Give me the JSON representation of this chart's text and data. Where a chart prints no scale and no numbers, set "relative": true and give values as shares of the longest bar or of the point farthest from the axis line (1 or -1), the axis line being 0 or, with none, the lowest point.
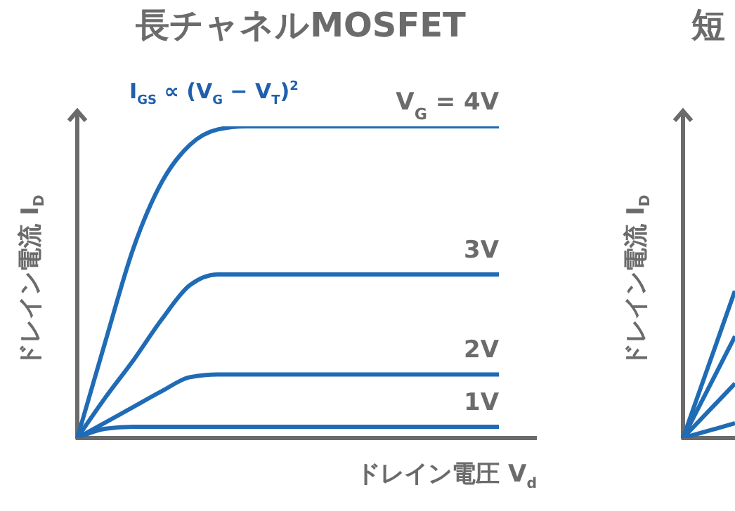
{
  "chart_data": [
    {
      "type": "line",
      "title": "長チャネルMOSFET",
      "xlabel": "ドレイン電圧 V$_{d}$",
      "ylabel": "ドレイン電流 I$_{D}$",
      "annotations": [
        "I$_{GS}$ ∝ (V$_{G}$ − V$_{T}$)$^{2}$"
      ],
      "relative": true,
      "marker": "none",
      "line_style": "solid",
      "categories": [
        null,
        null,
        null,
        null,
        null,
        null,
        null,
        null,
        null,
        null,
        null,
        null,
        null,
        null,
        null,
        null
      ],
      "series": [
        {
          "name": "V$_{G}$ = 4V",
          "color": "#1f6bb5",
          "values": [
            0,
            0.31,
            0.61,
            0.82,
            0.94,
            0.99,
            1,
            1,
            1,
            1,
            1,
            1,
            1,
            1,
            1,
            1
          ]
        },
        {
          "name": "3V",
          "color": "#1f6bb5",
          "values": [
            0,
            0.13,
            0.25,
            0.38,
            0.49,
            0.525,
            0.525,
            0.525,
            0.525,
            0.525,
            0.525,
            0.525,
            0.525,
            0.525,
            0.525,
            0.525
          ]
        },
        {
          "name": "2V",
          "color": "#1f6bb5",
          "values": [
            0,
            0.05,
            0.1,
            0.15,
            0.195,
            0.204,
            0.204,
            0.204,
            0.204,
            0.204,
            0.204,
            0.204,
            0.204,
            0.204,
            0.204,
            0.204
          ]
        },
        {
          "name": "1V",
          "color": "#1f6bb5",
          "values": [
            0,
            0.03,
            0.036,
            0.036,
            0.036,
            0.036,
            0.036,
            0.036,
            0.036,
            0.036,
            0.036,
            0.036,
            0.036,
            0.036,
            0.036,
            0.036
          ]
        }
      ]
    },
    {
      "type": "line",
      "title": "短",
      "ylabel": "ドレイン電流 I$_{D}$",
      "relative": true,
      "marker": "none",
      "line_style": "solid",
      "categories": [
        null,
        null
      ],
      "series": [
        {
          "color": "#1f6bb5",
          "values": [
            0,
            1
          ]
        },
        {
          "color": "#1f6bb5",
          "values": [
            0,
            0.69
          ]
        },
        {
          "color": "#1f6bb5",
          "values": [
            0,
            0.37
          ]
        },
        {
          "color": "#1f6bb5",
          "values": [
            0,
            0.1
          ]
        }
      ]
    }
  ]
}
